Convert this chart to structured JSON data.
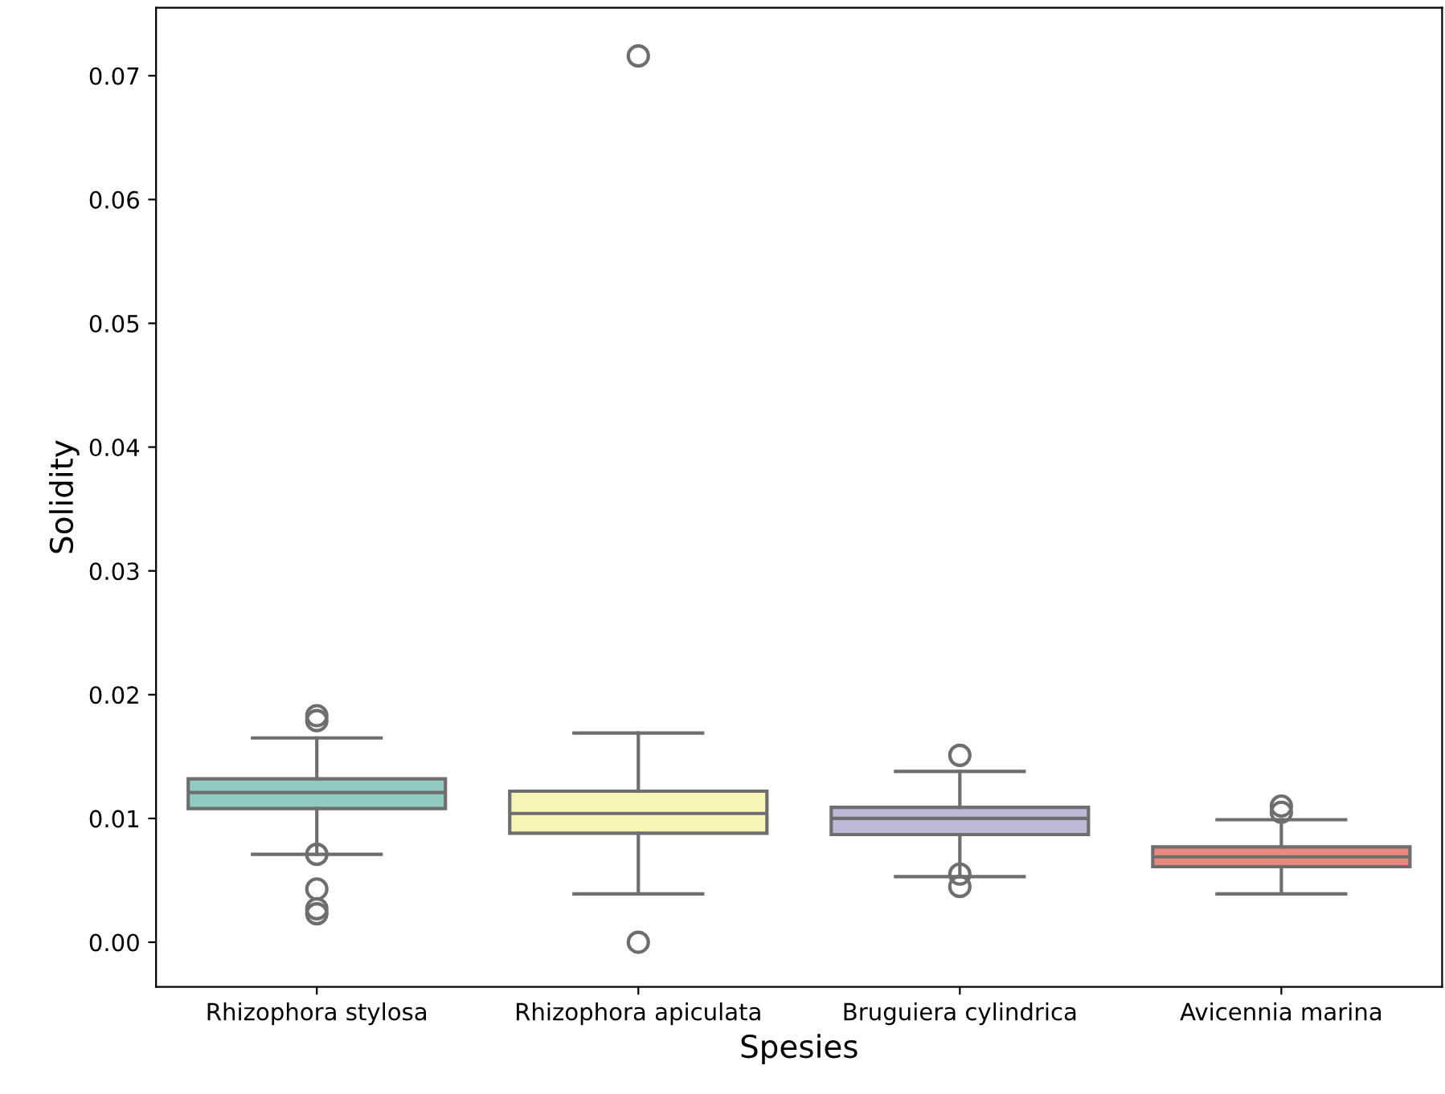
{
  "chart_data": {
    "type": "box",
    "xlabel": "Spesies",
    "ylabel": "Solidity",
    "categories": [
      "Rhizophora stylosa",
      "Rhizophora apiculata",
      "Bruguiera cylindrica",
      "Avicennia marina"
    ],
    "colors": [
      "#92cbbf",
      "#f7f5b5",
      "#bdb9d6",
      "#ea8a7e"
    ],
    "boxes": [
      {
        "low": 0.0071,
        "q1": 0.0108,
        "median": 0.0121,
        "q3": 0.0132,
        "high": 0.0165,
        "outliers": [
          0.0183,
          0.0179,
          0.0071,
          0.0043,
          0.0027,
          0.0023
        ]
      },
      {
        "low": 0.0039,
        "q1": 0.0088,
        "median": 0.0104,
        "q3": 0.0122,
        "high": 0.0169,
        "outliers": [
          0.0,
          0.0716
        ]
      },
      {
        "low": 0.0053,
        "q1": 0.0087,
        "median": 0.01,
        "q3": 0.0109,
        "high": 0.0138,
        "outliers": [
          0.0151,
          0.0055,
          0.0045
        ]
      },
      {
        "low": 0.0039,
        "q1": 0.0061,
        "median": 0.0069,
        "q3": 0.0077,
        "high": 0.0099,
        "outliers": [
          0.011,
          0.0105
        ]
      }
    ],
    "ylim": [
      -0.0036,
      0.0755
    ],
    "yticks": [
      {
        "value": 0,
        "label": "0.00"
      },
      {
        "value": 0.01,
        "label": "0.01"
      },
      {
        "value": 0.02,
        "label": "0.02"
      },
      {
        "value": 0.03,
        "label": "0.03"
      },
      {
        "value": 0.04,
        "label": "0.04"
      },
      {
        "value": 0.05,
        "label": "0.05"
      },
      {
        "value": 0.06,
        "label": "0.06"
      },
      {
        "value": 0.07,
        "label": "0.07"
      }
    ],
    "grid": false
  }
}
